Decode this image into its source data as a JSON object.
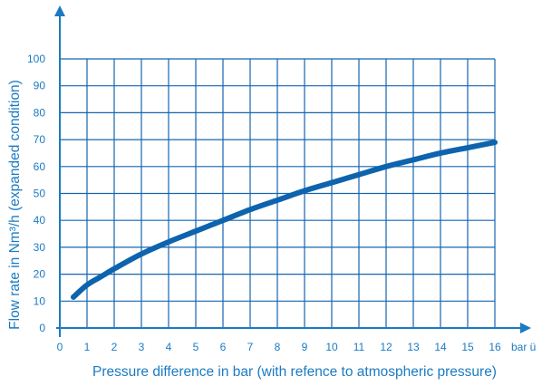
{
  "chart_data": {
    "type": "line",
    "title": "",
    "xlabel": "Pressure difference in bar (with refence to atmospheric pressure)",
    "ylabel": "Flow rate in Nm³/h (expanded condition)",
    "x_unit_label": "bar ü",
    "xlim": [
      0,
      16
    ],
    "ylim": [
      0,
      100
    ],
    "x_ticks": [
      "0",
      "1",
      "2",
      "3",
      "4",
      "5",
      "6",
      "7",
      "8",
      "9",
      "10",
      "11",
      "12",
      "13",
      "14",
      "15",
      "16"
    ],
    "y_ticks": [
      "0",
      "10",
      "20",
      "30",
      "40",
      "50",
      "60",
      "70",
      "80",
      "90",
      "100"
    ],
    "grid": true,
    "colors": {
      "grid": "#1565b0",
      "text": "#1b7bc2",
      "curve": "#0d63ad"
    },
    "series": [
      {
        "x": [
          0.5,
          1,
          1.5,
          2,
          3,
          4,
          5,
          6,
          7,
          8,
          9,
          10,
          11,
          12,
          13,
          14,
          15,
          16
        ],
        "values": [
          11.5,
          16,
          19,
          22,
          27.5,
          32,
          36,
          40,
          44,
          47.5,
          51,
          54,
          57,
          60,
          62.5,
          65,
          67,
          69
        ]
      }
    ]
  }
}
